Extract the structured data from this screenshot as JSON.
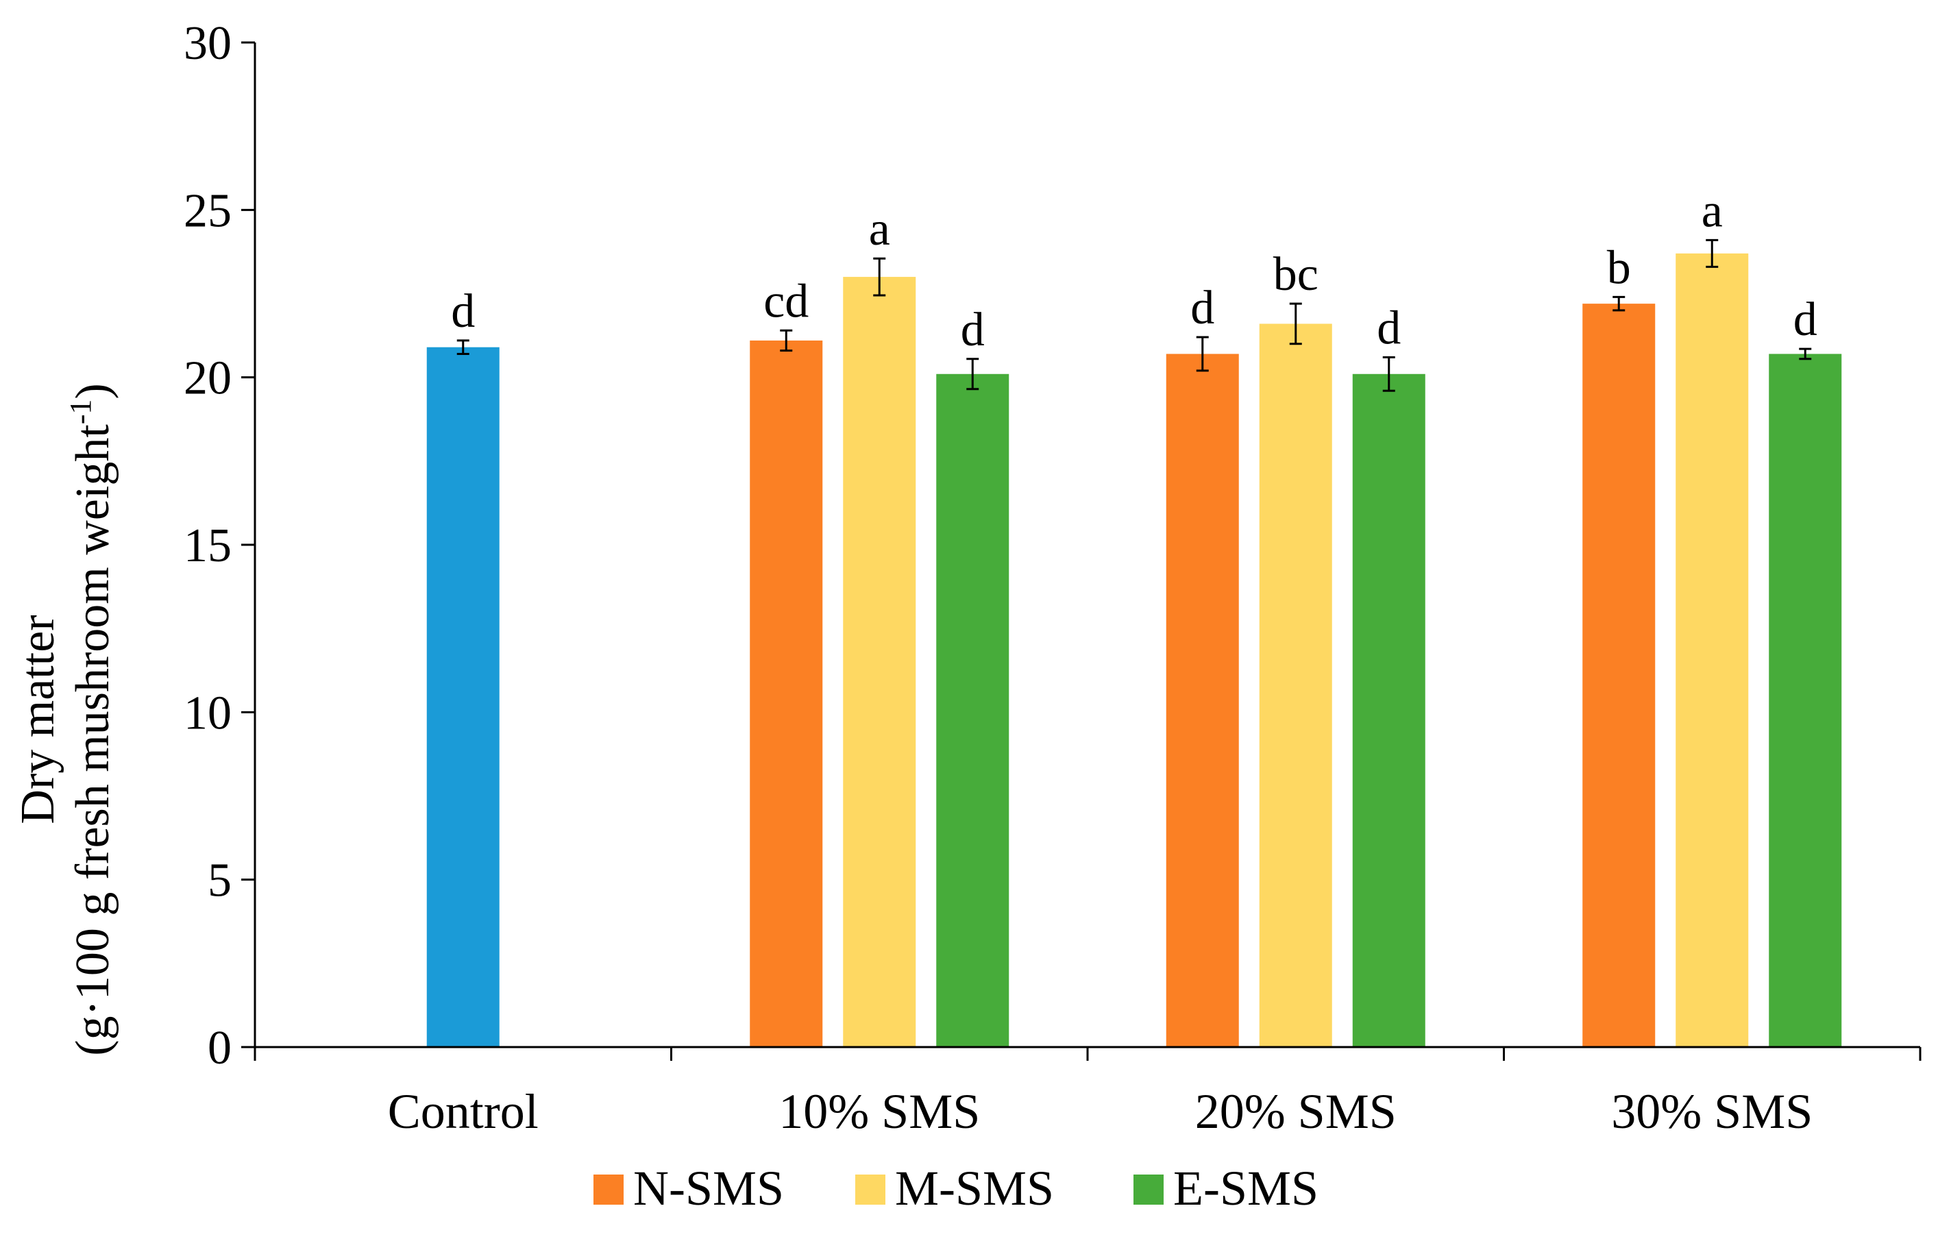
{
  "chart_data": {
    "type": "bar",
    "title": "",
    "xlabel": "",
    "ylabel_line1": "Dry matter",
    "ylabel_line2_pre": "(g·100 g fresh mushroom weight",
    "ylabel_line2_sup": "-1",
    "ylabel_line2_post": ")",
    "ylim": [
      0,
      30
    ],
    "yticks": [
      0,
      5,
      10,
      15,
      20,
      25,
      30
    ],
    "ytick_labels": [
      "0",
      "5",
      "10",
      "15",
      "20",
      "25",
      "30"
    ],
    "legend_position": "bottom-center",
    "categories": [
      "Control",
      "10% SMS",
      "20% SMS",
      "30% SMS"
    ],
    "colors": {
      "Control": "#1b9bd7",
      "N-SMS": "#fb8024",
      "M-SMS": "#fed862",
      "E-SMS": "#47ac3a"
    },
    "legend": [
      {
        "name": "N-SMS",
        "color": "#fb8024"
      },
      {
        "name": "M-SMS",
        "color": "#fed862"
      },
      {
        "name": "E-SMS",
        "color": "#47ac3a"
      }
    ],
    "groups": [
      {
        "category": "Control",
        "bars": [
          {
            "series": "Control",
            "value": 20.9,
            "error": 0.2,
            "label": "d"
          }
        ]
      },
      {
        "category": "10% SMS",
        "bars": [
          {
            "series": "N-SMS",
            "value": 21.1,
            "error": 0.3,
            "label": "cd"
          },
          {
            "series": "M-SMS",
            "value": 23.0,
            "error": 0.55,
            "label": "a"
          },
          {
            "series": "E-SMS",
            "value": 20.1,
            "error": 0.45,
            "label": "d"
          }
        ]
      },
      {
        "category": "20% SMS",
        "bars": [
          {
            "series": "N-SMS",
            "value": 20.7,
            "error": 0.5,
            "label": "d"
          },
          {
            "series": "M-SMS",
            "value": 21.6,
            "error": 0.6,
            "label": "bc"
          },
          {
            "series": "E-SMS",
            "value": 20.1,
            "error": 0.5,
            "label": "d"
          }
        ]
      },
      {
        "category": "30% SMS",
        "bars": [
          {
            "series": "N-SMS",
            "value": 22.2,
            "error": 0.2,
            "label": "b"
          },
          {
            "series": "M-SMS",
            "value": 23.7,
            "error": 0.4,
            "label": "a"
          },
          {
            "series": "E-SMS",
            "value": 20.7,
            "error": 0.15,
            "label": "d"
          }
        ]
      }
    ]
  }
}
